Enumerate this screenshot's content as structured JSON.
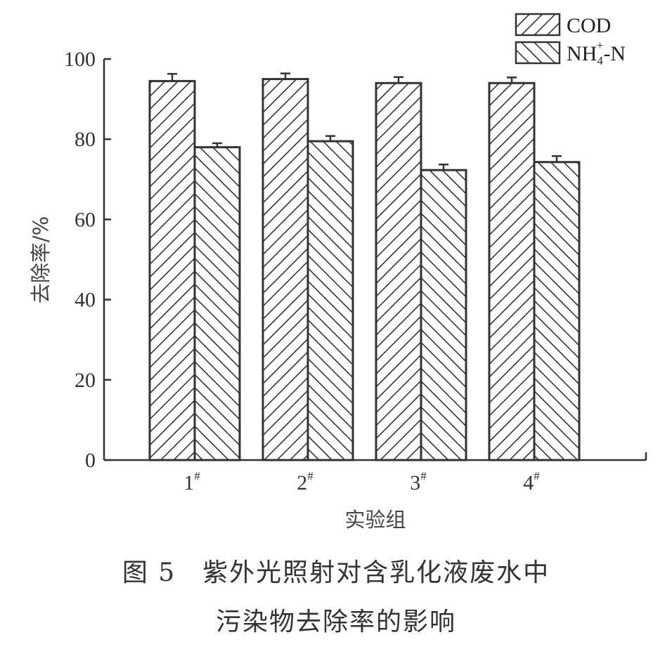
{
  "chart_data": {
    "type": "bar",
    "categories": [
      "1",
      "2",
      "3",
      "4"
    ],
    "category_suffix": "#",
    "series": [
      {
        "name": "COD",
        "values": [
          94.5,
          95.0,
          94.0,
          94.0
        ],
        "errors": [
          1.8,
          1.4,
          1.5,
          1.4
        ],
        "hatch": "forward"
      },
      {
        "name": "NH4+-N",
        "values": [
          78.0,
          79.5,
          72.3,
          74.3
        ],
        "errors": [
          1.0,
          1.3,
          1.4,
          1.5
        ],
        "hatch": "back"
      }
    ],
    "legend": {
      "cod_label": "COD",
      "nh_main": "NH",
      "nh_sub": "4",
      "nh_sup": "+",
      "nh_tail": "-N",
      "position": "top-right"
    },
    "ylabel": "去除率/%",
    "xlabel": "实验组",
    "ylim": [
      0,
      100
    ],
    "yticks": [
      0,
      20,
      40,
      60,
      80,
      100
    ],
    "grid": false
  },
  "caption": {
    "line1": "图 5　紫外光照射对含乳化液废水中",
    "line2": "污染物去除率的影响"
  },
  "colors": {
    "bar_fill": "#ffffff",
    "stroke": "#333333"
  }
}
